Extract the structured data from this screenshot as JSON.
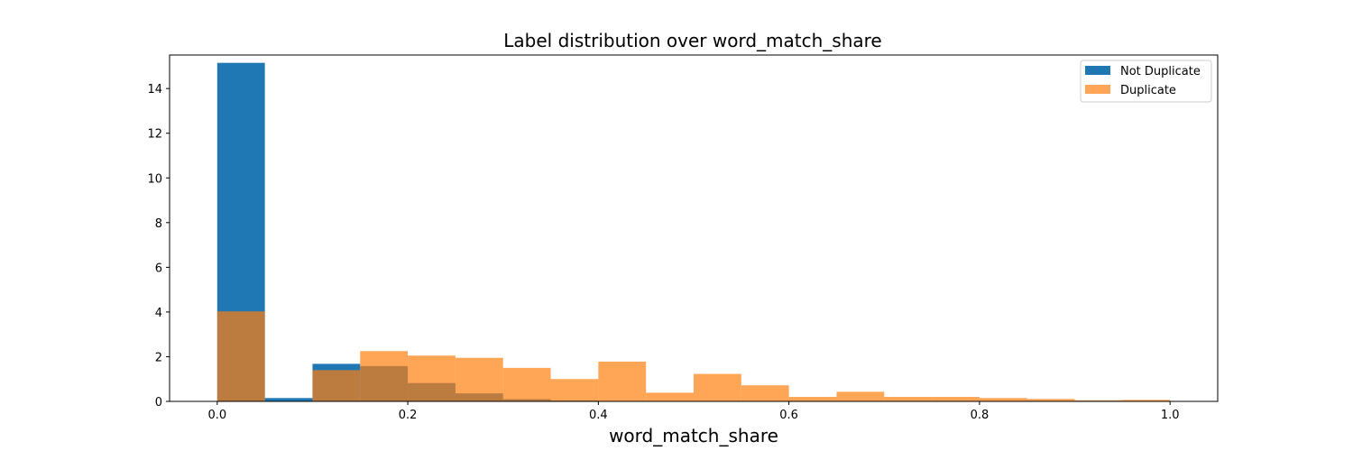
{
  "chart_data": {
    "type": "bar",
    "title": "Label distribution over word_match_share",
    "xlabel": "word_match_share",
    "ylabel": "",
    "xlim": [
      -0.05,
      1.05
    ],
    "ylim": [
      0,
      15.5
    ],
    "xticks": [
      "0.0",
      "0.2",
      "0.4",
      "0.6",
      "0.8",
      "1.0"
    ],
    "xtick_values": [
      0.0,
      0.2,
      0.4,
      0.6,
      0.8,
      1.0
    ],
    "yticks": [
      "0",
      "2",
      "4",
      "6",
      "8",
      "10",
      "12",
      "14"
    ],
    "ytick_values": [
      0,
      2,
      4,
      6,
      8,
      10,
      12,
      14
    ],
    "bin_edges": [
      0.0,
      0.05,
      0.1,
      0.15,
      0.2,
      0.25,
      0.3,
      0.35,
      0.4,
      0.45,
      0.5,
      0.55,
      0.6,
      0.65,
      0.7,
      0.75,
      0.8,
      0.85,
      0.9,
      0.95,
      1.0
    ],
    "legend_position": "top-right",
    "grid": false,
    "series": [
      {
        "name": "Not Duplicate",
        "color": "#1f77b4",
        "opacity": 1.0,
        "values": [
          15.15,
          0.15,
          1.68,
          1.58,
          0.82,
          0.36,
          0.1,
          0.04,
          0.02,
          0.01,
          0.005,
          0.003,
          0.002,
          0.001,
          0.001,
          0.001,
          0.0,
          0.0,
          0.0,
          0.0
        ]
      },
      {
        "name": "Duplicate",
        "color": "#ff7f0e",
        "opacity": 0.7,
        "values": [
          4.03,
          0.02,
          1.4,
          2.25,
          2.05,
          1.95,
          1.5,
          1.0,
          1.78,
          0.39,
          1.23,
          0.72,
          0.2,
          0.43,
          0.2,
          0.2,
          0.15,
          0.11,
          0.05,
          0.07
        ]
      }
    ]
  }
}
